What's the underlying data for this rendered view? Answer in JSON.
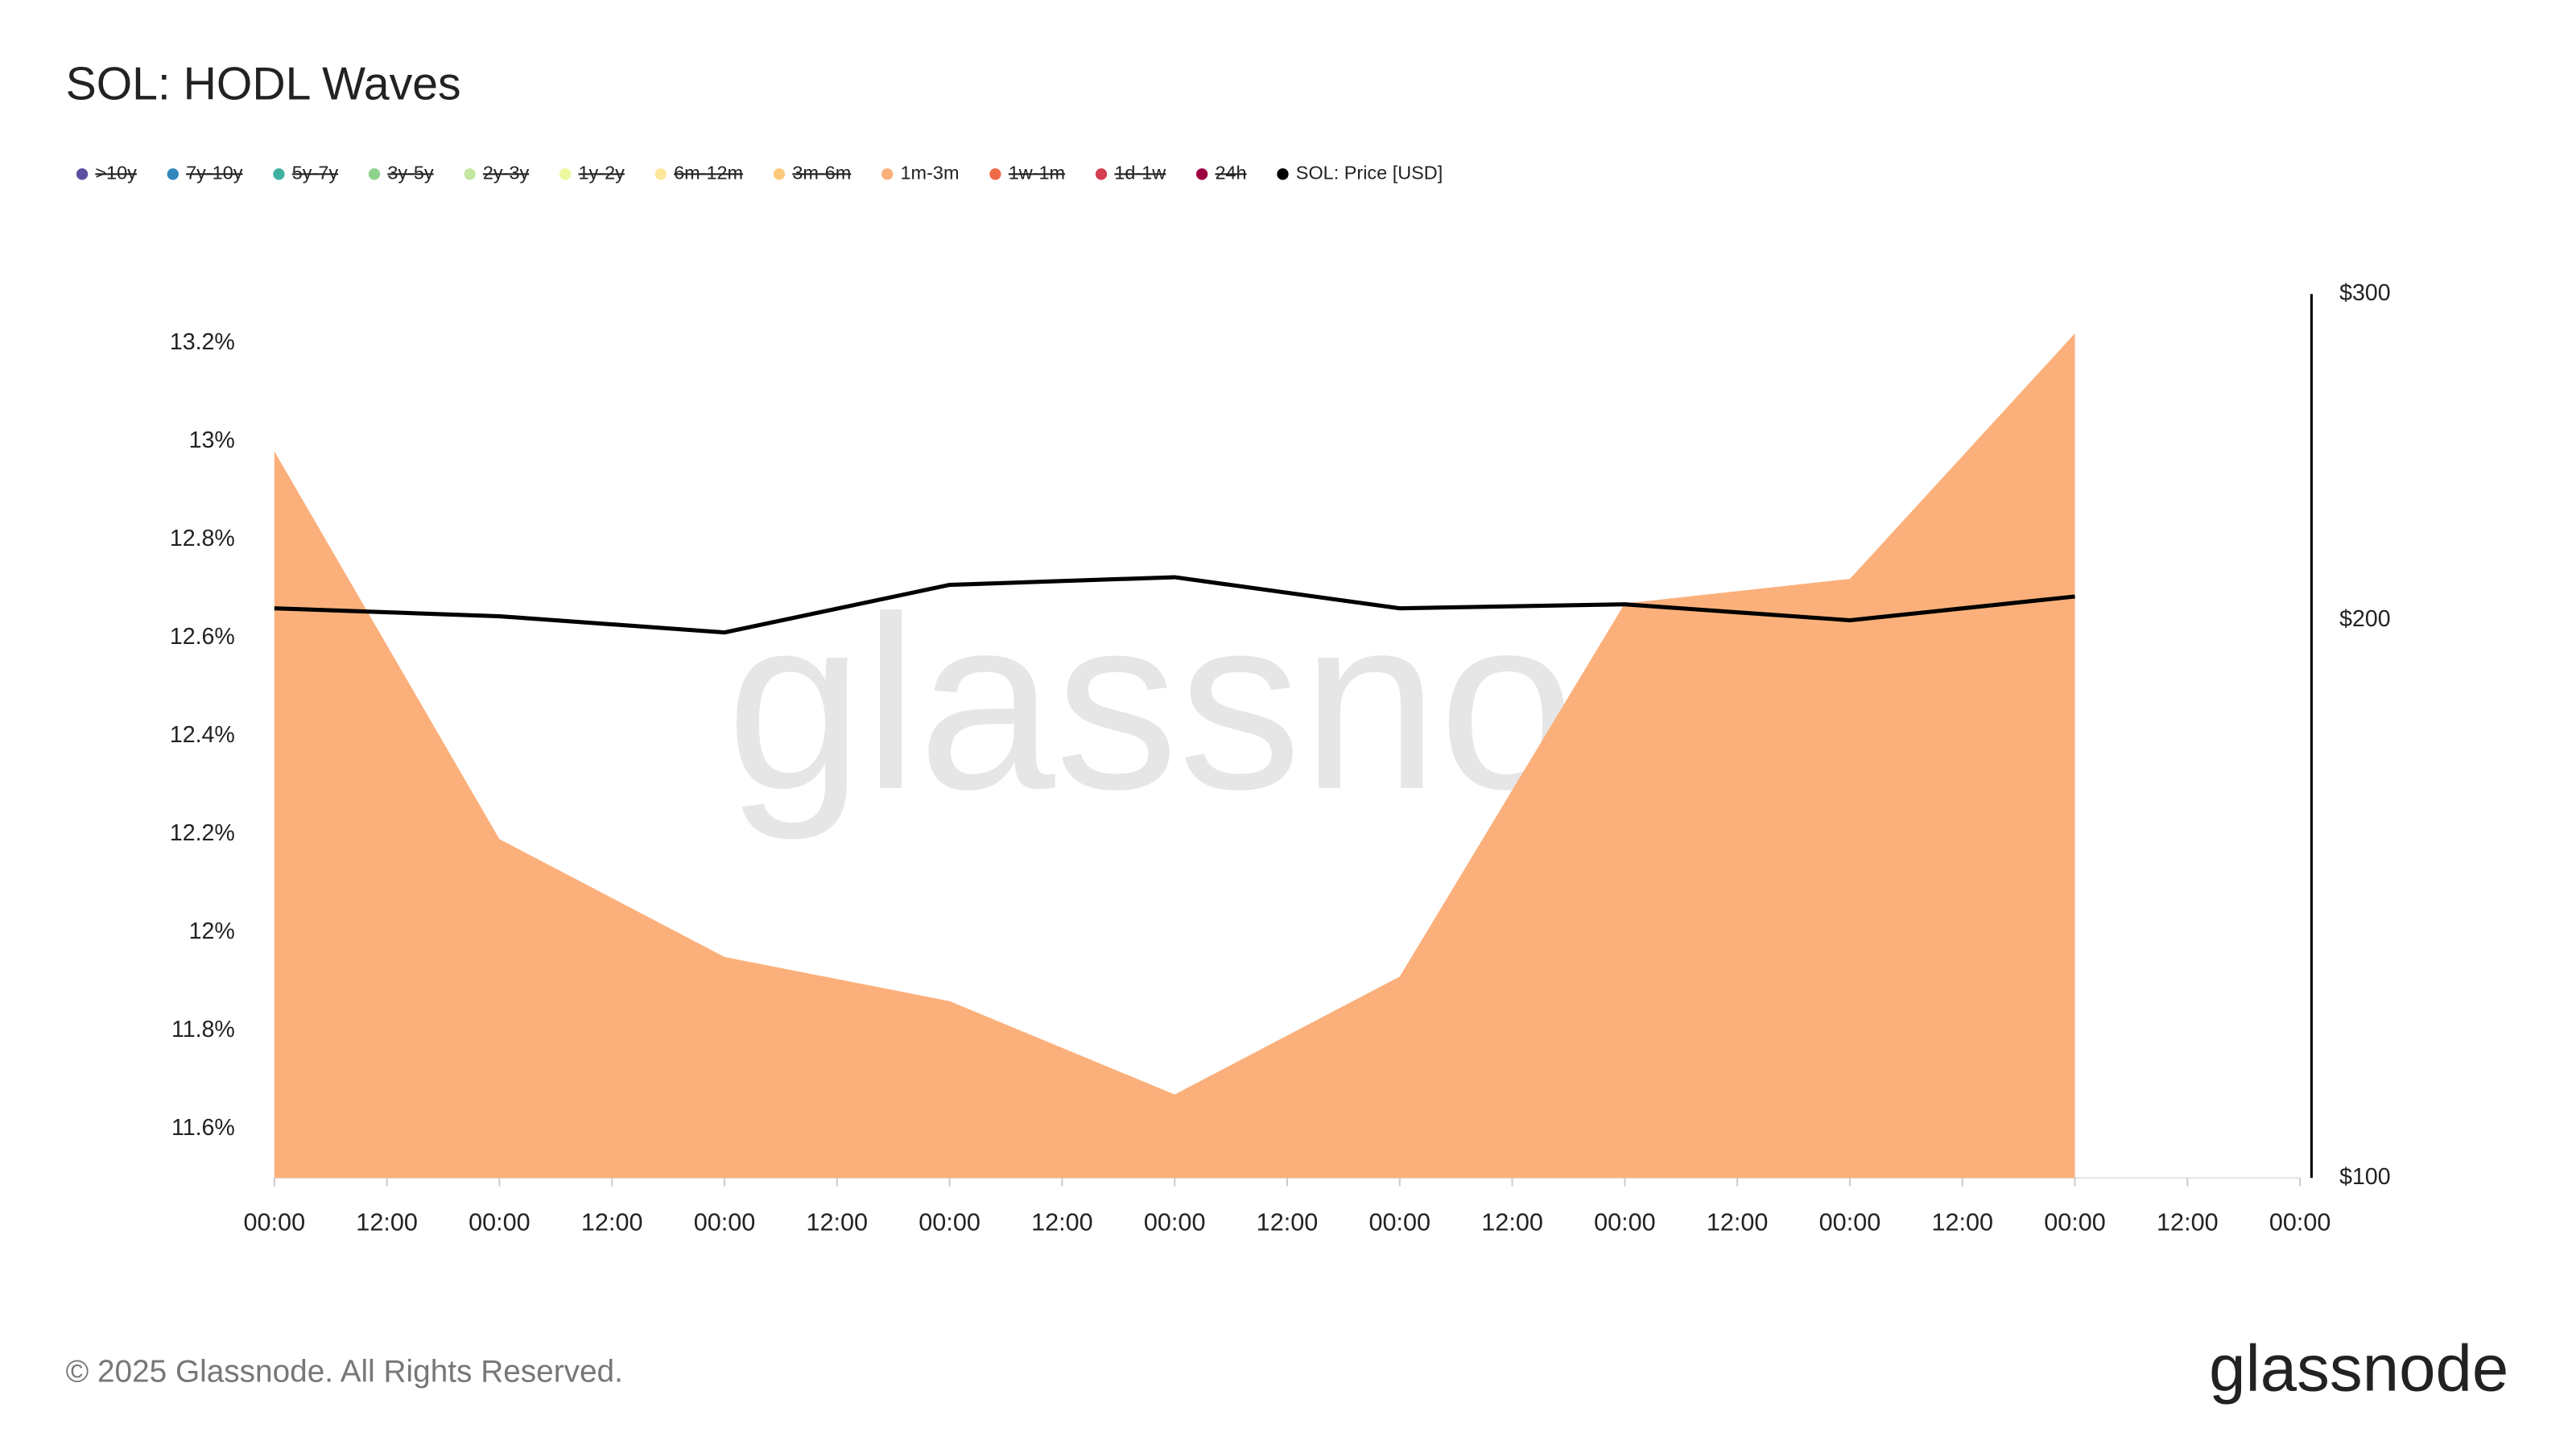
{
  "chart_data": {
    "type": "area",
    "title": "SOL: HODL Waves",
    "xlim": [
      0,
      216
    ],
    "xticks": [
      {
        "value": 0,
        "label": "00:00"
      },
      {
        "value": 12,
        "label": "12:00"
      },
      {
        "value": 24,
        "label": "00:00"
      },
      {
        "value": 36,
        "label": "12:00"
      },
      {
        "value": 48,
        "label": "00:00"
      },
      {
        "value": 60,
        "label": "12:00"
      },
      {
        "value": 72,
        "label": "00:00"
      },
      {
        "value": 84,
        "label": "12:00"
      },
      {
        "value": 96,
        "label": "00:00"
      },
      {
        "value": 108,
        "label": "12:00"
      },
      {
        "value": 120,
        "label": "00:00"
      },
      {
        "value": 132,
        "label": "12:00"
      },
      {
        "value": 144,
        "label": "00:00"
      },
      {
        "value": 156,
        "label": "12:00"
      },
      {
        "value": 168,
        "label": "00:00"
      },
      {
        "value": 180,
        "label": "12:00"
      },
      {
        "value": 192,
        "label": "00:00"
      },
      {
        "value": 204,
        "label": "12:00"
      },
      {
        "value": 216,
        "label": "00:00"
      }
    ],
    "x": [
      0,
      24,
      48,
      72,
      96,
      120,
      144,
      168,
      192
    ],
    "ylim": [
      11.5,
      13.3
    ],
    "yticks": [
      {
        "value": 11.6,
        "label": "11.6%"
      },
      {
        "value": 11.8,
        "label": "11.8%"
      },
      {
        "value": 12,
        "label": "12%"
      },
      {
        "value": 12.2,
        "label": "12.2%"
      },
      {
        "value": 12.4,
        "label": "12.4%"
      },
      {
        "value": 12.6,
        "label": "12.6%"
      },
      {
        "value": 12.8,
        "label": "12.8%"
      },
      {
        "value": 13,
        "label": "13%"
      },
      {
        "value": 13.2,
        "label": "13.2%"
      }
    ],
    "y2lim": [
      100,
      300
    ],
    "y2log": true,
    "y2ticks": [
      {
        "value": 100,
        "label": "$100"
      },
      {
        "value": 200,
        "label": "$200"
      },
      {
        "value": 300,
        "label": "$300"
      }
    ],
    "series": [
      {
        "name": ">10y",
        "color": "#5e4fa2",
        "visible": false
      },
      {
        "name": "7y-10y",
        "color": "#3288bd",
        "visible": false
      },
      {
        "name": "5y-7y",
        "color": "#3fb1a0",
        "visible": false
      },
      {
        "name": "3y-5y",
        "color": "#8fd18f",
        "visible": false
      },
      {
        "name": "2y-3y",
        "color": "#c5e6a0",
        "visible": false
      },
      {
        "name": "1y-2y",
        "color": "#eef89e",
        "visible": false
      },
      {
        "name": "6m-12m",
        "color": "#fde89a",
        "visible": false
      },
      {
        "name": "3m-6m",
        "color": "#fdc97a",
        "visible": false
      },
      {
        "name": "1m-3m",
        "color": "#fbb07b",
        "visible": true,
        "values": [
          12.98,
          12.19,
          11.95,
          11.86,
          11.67,
          11.91,
          12.67,
          12.72,
          13.22
        ]
      },
      {
        "name": "1w-1m",
        "color": "#f06a47",
        "visible": false
      },
      {
        "name": "1d-1w",
        "color": "#d53e4f",
        "visible": false
      },
      {
        "name": "24h",
        "color": "#9e0142",
        "visible": false
      },
      {
        "name": "SOL: Price [USD]",
        "color": "#000000",
        "visible": true,
        "type": "line",
        "axis": "y2",
        "values": [
          203,
          201,
          197,
          209,
          211,
          203,
          204,
          200,
          206
        ]
      }
    ]
  },
  "watermark": "glassnode",
  "footer": {
    "copyright": "© 2025 Glassnode. All Rights Reserved.",
    "logo": "glassnode"
  }
}
